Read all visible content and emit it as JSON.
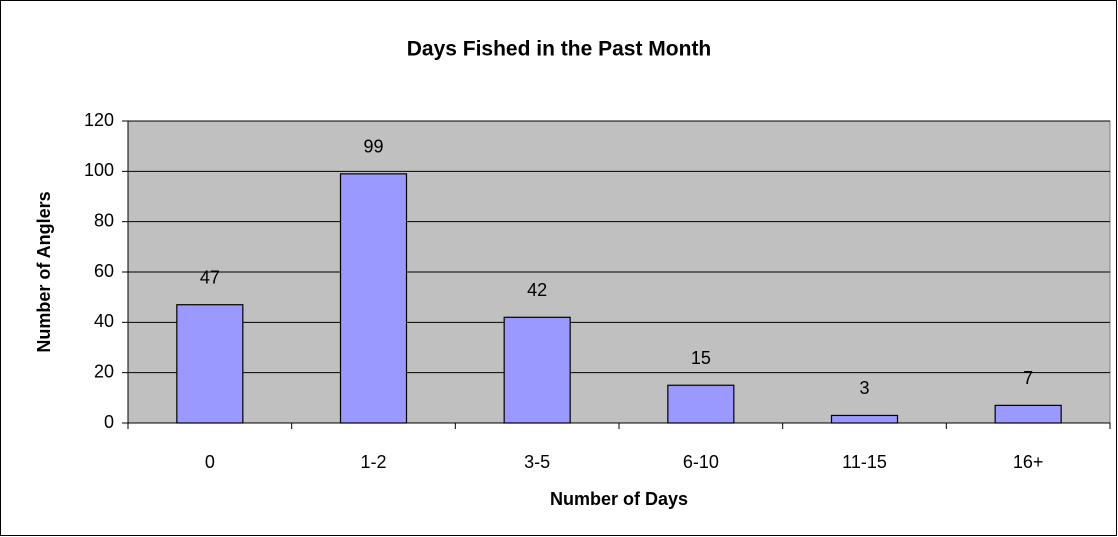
{
  "chart_data": {
    "type": "bar",
    "title": "Days Fished in the Past Month",
    "x_label": "Number of Days",
    "y_label": "Number of Anglers",
    "categories": [
      "0",
      "1-2",
      "3-5",
      "6-10",
      "11-15",
      "16+"
    ],
    "values": [
      47,
      99,
      42,
      15,
      3,
      7
    ],
    "color": "#9999ff",
    "ylim": [
      0,
      120
    ],
    "yticks": [
      0,
      20,
      40,
      60,
      80,
      100,
      120
    ],
    "grid": true
  }
}
